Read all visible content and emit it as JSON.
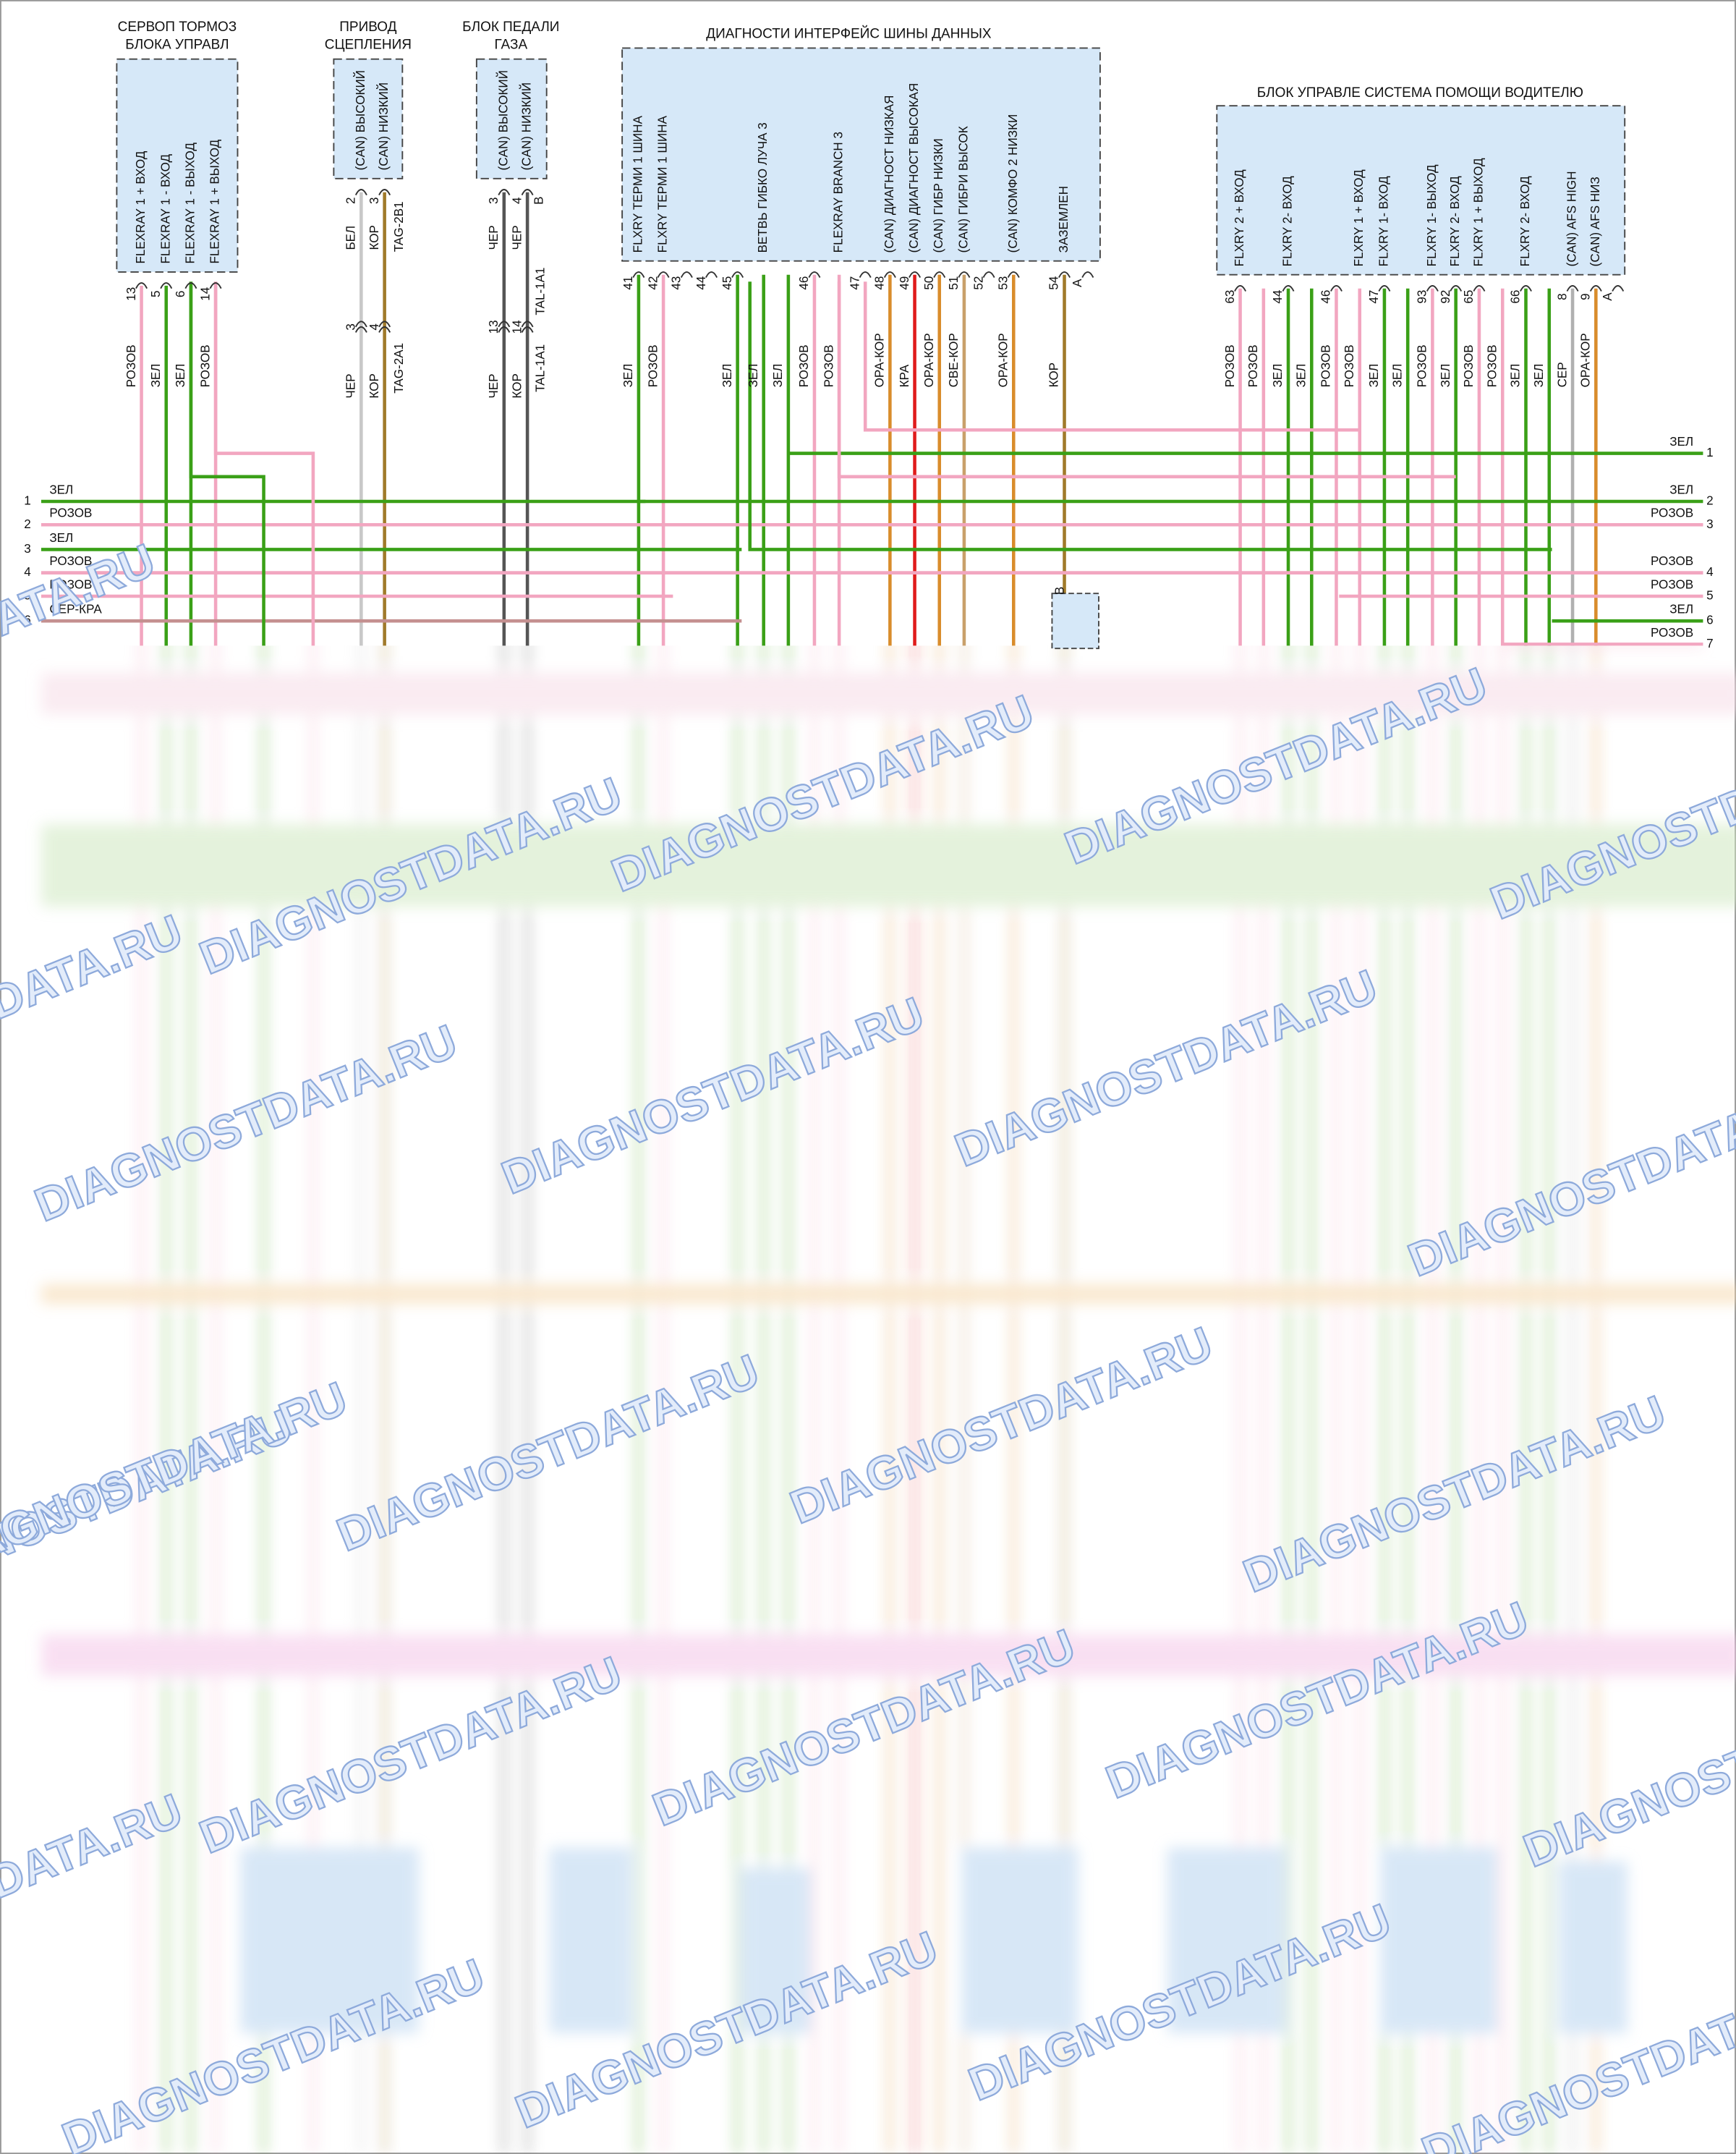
{
  "modules": [
    {
      "title": [
        "СЕРВОП ТОРМОЗ",
        "БЛОКА УПРАВЛ"
      ],
      "pins": [
        {
          "num": "13",
          "label": "FLEXRAY 1 + ВХОД",
          "wire": "РОЗОВ"
        },
        {
          "num": "5",
          "label": "FLEXRAY 1 - ВХОД",
          "wire": "ЗЕЛ"
        },
        {
          "num": "6",
          "label": "FLEXRAY 1 - ВЫХОД",
          "wire": "ЗЕЛ"
        },
        {
          "num": "14",
          "label": "FLEXRAY 1 + ВЫХОД",
          "wire": "РОЗОВ"
        }
      ]
    },
    {
      "title": [
        "ПРИВОД",
        "СЦЕПЛЕНИЯ"
      ],
      "pins": [
        {
          "num": "2",
          "label": "(CAN) ВЫСОКИЙ",
          "wire": "БЕЛ"
        },
        {
          "num": "3",
          "label": "(CAN) НИЗКИЙ",
          "wire": "КОР"
        }
      ],
      "tag": "TAG-2B1",
      "inline": {
        "pins": [
          {
            "num": "3",
            "wire": "ЧЕР"
          },
          {
            "num": "4",
            "wire": "КОР"
          }
        ],
        "tag": "TAG-2A1"
      }
    },
    {
      "title": [
        "БЛОК ПЕДАЛИ",
        "ГАЗА"
      ],
      "pins": [
        {
          "num": "3",
          "label": "(CAN) ВЫСОКИЙ",
          "wire": "ЧЕР"
        },
        {
          "num": "4",
          "alt": "B",
          "label": "(CAN) НИЗКИЙ",
          "wire": "ЧЕР"
        }
      ],
      "tag": "TAL-1A1",
      "inline": {
        "pins": [
          {
            "num": "13",
            "wire": "ЧЕР"
          },
          {
            "num": "14",
            "wire": "КОР"
          }
        ],
        "tag": "TAL-1A1"
      }
    },
    {
      "title": [
        "ДИАГНОСТИ ИНТЕРФЕЙС ШИНЫ ДАННЫХ"
      ],
      "pins": [
        {
          "num": "41",
          "label": "FLXRY ТЕРМИ 1 ШИНА",
          "wire": "ЗЕЛ"
        },
        {
          "num": "42",
          "label": "FLXRY ТЕРМИ 1 ШИНА",
          "wire": "РОЗОВ"
        },
        {
          "num": "43"
        },
        {
          "num": "44"
        },
        {
          "num": "45",
          "wire": "ЗЕЛ"
        },
        {
          "label": "ВЕТВЬ ГИБКО ЛУЧА 3",
          "wire": "ЗЕЛ"
        },
        {
          "wire": "ЗЕЛ"
        },
        {
          "num": "46",
          "wire": "РОЗОВ"
        },
        {
          "label": "FLEXRAY BRANCH 3",
          "wire": "РОЗОВ"
        },
        {
          "num": "47"
        },
        {
          "num": "48",
          "label": "(CAN) ДИАГНОСТ НИЗКАЯ",
          "wire": "ОРА-КОР"
        },
        {
          "num": "49",
          "label": "(CAN) ДИАГНОСТ ВЫСОКАЯ",
          "wire": "КРА"
        },
        {
          "num": "50",
          "label": "(CAN) ГИБР НИЗКИ",
          "wire": "ОРА-КОР"
        },
        {
          "num": "51",
          "label": "(CAN) ГИБРИ ВЫСОК",
          "wire": "СВЕ-КОР"
        },
        {
          "num": "52"
        },
        {
          "num": "53",
          "label": "(CAN) КОМФО 2 НИЗКИ",
          "wire": "ОРА-КОР"
        },
        {
          "num": "54",
          "label": "ЗАЗЕМЛЕН",
          "wire": "КОР"
        },
        {
          "num": "A"
        }
      ]
    },
    {
      "title": [
        "БЛОК УПРАВЛЕ СИСТЕМА ПОМОЩИ ВОДИТЕЛЮ"
      ],
      "pins": [
        {
          "num": "63",
          "label": "FLXRY 2 + ВХОД",
          "wire": "РОЗОВ"
        },
        {
          "wire": "РОЗОВ"
        },
        {
          "num": "44",
          "label": "FLXRY 2- ВХОД",
          "wire": "ЗЕЛ"
        },
        {
          "wire": "ЗЕЛ"
        },
        {
          "num": "46",
          "wire": "РОЗОВ"
        },
        {
          "label": "FLXRY 1 + ВХОД",
          "wire": "РОЗОВ"
        },
        {
          "num": "47",
          "label": "FLXRY 1- ВХОД",
          "wire": "ЗЕЛ"
        },
        {
          "wire": "ЗЕЛ"
        },
        {
          "num": "93",
          "label": "FLXRY 1- ВЫХОД",
          "wire": "РОЗОВ"
        },
        {
          "num": "92",
          "label": "FLXRY 2- ВХОД",
          "wire": "ЗЕЛ"
        },
        {
          "num": "65",
          "label": "FLXRY 1 + ВЫХОД",
          "wire": "РОЗОВ"
        },
        {
          "wire": "РОЗОВ"
        },
        {
          "num": "66",
          "label": "FLXRY 2- ВХОД",
          "wire": "ЗЕЛ"
        },
        {
          "wire": "ЗЕЛ"
        },
        {
          "num": "8",
          "label": "(CAN) AFS HIGH",
          "wire": "СЕР"
        },
        {
          "num": "9",
          "label": "(CAN) AFS НИЗ",
          "wire": "ОРА-КОР"
        },
        {
          "num": "A"
        }
      ]
    }
  ],
  "ground_connector": "B",
  "left_bus": [
    {
      "num": "1",
      "wire": "ЗЕЛ"
    },
    {
      "num": "2",
      "wire": "РОЗОВ"
    },
    {
      "num": "3",
      "wire": "ЗЕЛ"
    },
    {
      "num": "4",
      "wire": "РОЗОВ"
    },
    {
      "num": "5",
      "wire": "РОЗОВ"
    },
    {
      "num": "6",
      "wire": "СЕР-КРА"
    }
  ],
  "right_bus": [
    {
      "num": "1",
      "wire": "ЗЕЛ"
    },
    {
      "num": "2",
      "wire": "ЗЕЛ"
    },
    {
      "num": "3",
      "wire": "РОЗОВ"
    },
    {
      "num": "4",
      "wire": "РОЗОВ"
    },
    {
      "num": "5",
      "wire": "РОЗОВ"
    },
    {
      "num": "6",
      "wire": "ЗЕЛ"
    },
    {
      "num": "7",
      "wire": "РОЗОВ"
    }
  ],
  "wire_colors": {
    "ЗЕЛ": "#3aa017",
    "РОЗОВ": "#f2a6c0",
    "ЧЕР": "#555555",
    "КОР": "#a07a2a",
    "БЕЛ": "#c8c8c8",
    "ОРА-КОР": "#d98c2b",
    "КРА": "#e01b1b",
    "СВЕ-КОР": "#c9a06a",
    "СЕР": "#b0b0b0",
    "СЕР-КРА": "#c49090"
  },
  "watermark": "DIAGNOSTDATA.RU"
}
